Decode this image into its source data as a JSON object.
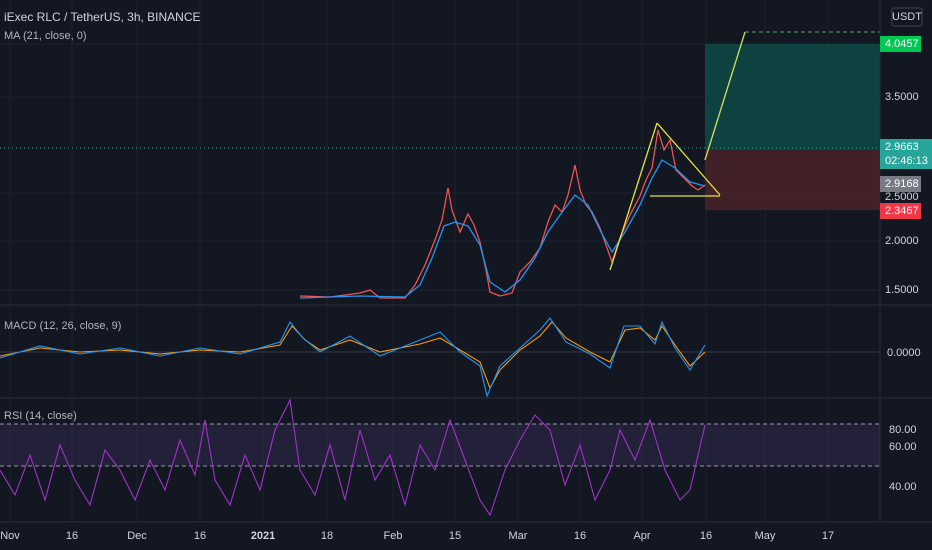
{
  "header": {
    "symbol": "iExec RLC / TetherUS, 3h, BINANCE",
    "ma": "MA (21, close, 0)",
    "currency": "USDT"
  },
  "price_axis": {
    "target": "4.0457",
    "level_3_5": "3.5000",
    "last": "2.9663",
    "countdown": "02:46:13",
    "ma_value": "2.9168",
    "level_2_5": "2.5000",
    "stop": "2.3467",
    "level_2_0": "2.0000",
    "level_1_5": "1.5000"
  },
  "macd": {
    "title": "MACD (12, 26, close, 9)",
    "zero": "0.0000"
  },
  "rsi": {
    "title": "RSI (14, close)",
    "levels": [
      "80.00",
      "60.00",
      "40.00"
    ]
  },
  "time_axis": [
    "Nov",
    "16",
    "Dec",
    "16",
    "2021",
    "18",
    "Feb",
    "15",
    "Mar",
    "16",
    "Apr",
    "16",
    "May",
    "17"
  ]
}
